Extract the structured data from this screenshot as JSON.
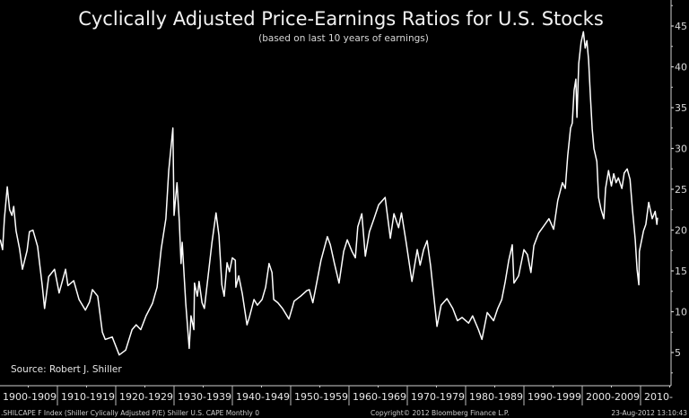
{
  "chart_data": {
    "type": "line",
    "title": "Cyclically Adjusted Price-Earnings Ratios for U.S. Stocks",
    "subtitle": "(based on last 10 years of earnings)",
    "xlabel": "",
    "ylabel": "",
    "xlim": [
      1900,
      2015.2
    ],
    "ylim": [
      0,
      48
    ],
    "y_ticks": [
      5,
      10,
      15,
      20,
      25,
      30,
      35,
      40,
      45
    ],
    "y_axis_side": "right",
    "x_tick_labels": [
      "1900-1909",
      "1910-1919",
      "1920-1929",
      "1930-1939",
      "1940-1949",
      "1950-1959",
      "1960-1969",
      "1970-1979",
      "1980-1989",
      "1990-1999",
      "2000-2009",
      "2010-"
    ],
    "grid": false,
    "annotation": "Source: Robert J. Shiller",
    "series": [
      {
        "name": "SHILCAPE F Index (Shiller Cylically Adjusted P/E)",
        "color": "#ffffff",
        "x": [
          1900.2,
          1900.6,
          1900.9,
          1901.4,
          1901.8,
          1902.2,
          1902.5,
          1902.9,
          1903.5,
          1904.0,
          1904.8,
          1905.2,
          1905.8,
          1906.6,
          1907.4,
          1907.8,
          1908.5,
          1909.5,
          1910.3,
          1911.4,
          1911.8,
          1912.8,
          1913.7,
          1914.8,
          1915.5,
          1916.0,
          1916.9,
          1917.7,
          1918.2,
          1919.4,
          1920.6,
          1921.7,
          1922.8,
          1923.5,
          1924.3,
          1925.2,
          1926.3,
          1927.1,
          1927.8,
          1928.6,
          1929.1,
          1929.8,
          1930.0,
          1930.5,
          1930.9,
          1931.2,
          1931.4,
          1932.0,
          1932.6,
          1932.9,
          1933.4,
          1933.5,
          1934.0,
          1934.3,
          1934.8,
          1935.2,
          1935.8,
          1936.5,
          1937.2,
          1937.7,
          1938.2,
          1938.6,
          1939.1,
          1939.5,
          1940.0,
          1940.5,
          1940.6,
          1941.1,
          1941.7,
          1942.5,
          1942.9,
          1943.7,
          1944.3,
          1945.1,
          1945.7,
          1946.3,
          1946.8,
          1947.1,
          1947.8,
          1948.6,
          1949.7,
          1950.6,
          1951.7,
          1952.8,
          1953.2,
          1953.8,
          1954.5,
          1955.2,
          1956.3,
          1956.8,
          1957.5,
          1958.3,
          1959.1,
          1959.7,
          1960.5,
          1961.1,
          1961.5,
          1962.2,
          1962.8,
          1963.5,
          1964.3,
          1965.1,
          1966.2,
          1967.1,
          1967.7,
          1968.5,
          1969.0,
          1969.8,
          1970.8,
          1971.7,
          1972.2,
          1972.8,
          1973.4,
          1974.0,
          1975.1,
          1975.8,
          1976.8,
          1977.8,
          1978.6,
          1979.4,
          1980.5,
          1981.2,
          1982.2,
          1982.8,
          1983.7,
          1984.8,
          1985.5,
          1986.2,
          1986.8,
          1987.4,
          1988.0,
          1988.3,
          1989.1,
          1990.0,
          1990.6,
          1991.2,
          1991.7,
          1992.5,
          1993.5,
          1994.3,
          1995.1,
          1995.8,
          1996.6,
          1997.1,
          1997.5,
          1998.0,
          1998.3,
          1998.6,
          1998.9,
          1999.1,
          1999.4,
          1999.8,
          2000.2,
          2000.5,
          2000.8,
          2001.1,
          2001.4,
          2001.7,
          2002.0,
          2002.5,
          2002.8,
          2003.2,
          2003.7,
          2004.0,
          2004.5,
          2005.0,
          2005.4,
          2005.8,
          2006.2,
          2006.8,
          2007.2,
          2007.7,
          2008.2,
          2008.6,
          2009.1,
          2009.4,
          2009.7,
          2009.8,
          2010.5,
          2010.9,
          2011.4,
          2012.0,
          2012.5,
          2012.8,
          2012.9
        ],
        "values": [
          18.8,
          17.6,
          21.4,
          25.3,
          22.5,
          21.8,
          22.9,
          19.9,
          17.7,
          15.2,
          17.5,
          19.8,
          20.0,
          18.0,
          13.2,
          10.4,
          14.3,
          15.2,
          12.3,
          15.2,
          13.2,
          13.8,
          11.5,
          10.2,
          11.2,
          12.7,
          11.9,
          7.5,
          6.6,
          6.9,
          4.7,
          5.3,
          7.8,
          8.4,
          7.8,
          9.5,
          11.0,
          13.0,
          17.7,
          21.4,
          27.3,
          32.5,
          21.8,
          25.8,
          21.0,
          15.9,
          18.5,
          11.1,
          5.5,
          9.5,
          7.8,
          13.5,
          11.9,
          13.7,
          11.1,
          10.4,
          14.1,
          18.5,
          22.1,
          19.3,
          13.3,
          11.9,
          16.0,
          14.9,
          16.6,
          16.3,
          13.0,
          14.4,
          12.2,
          8.4,
          9.3,
          11.5,
          10.8,
          11.5,
          13.0,
          15.9,
          14.8,
          11.5,
          11.1,
          10.4,
          9.1,
          11.3,
          11.9,
          12.6,
          12.7,
          11.1,
          13.7,
          16.3,
          19.2,
          18.2,
          15.9,
          13.5,
          17.4,
          18.8,
          17.4,
          16.6,
          20.4,
          22.0,
          16.8,
          19.8,
          21.4,
          23.1,
          24.0,
          19.0,
          22.0,
          20.3,
          22.1,
          18.5,
          13.7,
          17.6,
          15.7,
          17.6,
          18.7,
          15.6,
          8.2,
          10.8,
          11.6,
          10.4,
          8.9,
          9.3,
          8.6,
          9.5,
          7.8,
          6.6,
          9.9,
          8.9,
          10.4,
          11.5,
          13.7,
          16.3,
          18.2,
          13.5,
          14.4,
          17.6,
          17.0,
          14.8,
          18.1,
          19.6,
          20.6,
          21.4,
          20.1,
          23.6,
          25.8,
          25.1,
          29.1,
          32.5,
          33.1,
          37.1,
          38.5,
          33.8,
          40.4,
          43.0,
          44.3,
          42.3,
          43.2,
          40.8,
          36.4,
          32.4,
          30.0,
          28.4,
          24.0,
          22.6,
          21.4,
          25.1,
          27.3,
          25.4,
          26.9,
          25.8,
          26.4,
          25.1,
          27.0,
          27.5,
          26.2,
          22.6,
          18.8,
          15.2,
          13.3,
          17.4,
          19.9,
          20.7,
          23.4,
          21.4,
          22.3,
          20.7,
          21.5
        ]
      }
    ]
  },
  "footer": {
    "index_description": ".SHILCAPE F Index (Shiller Cylically Adjusted P/E) Shiller U.S. CAPE  Monthly 0",
    "copyright": "Copyright© 2012 Bloomberg Finance L.P.",
    "timestamp": "23-Aug-2012 13:10:43"
  },
  "colors": {
    "background": "#000000",
    "line": "#ffffff",
    "axis": "#d0d0d0"
  }
}
